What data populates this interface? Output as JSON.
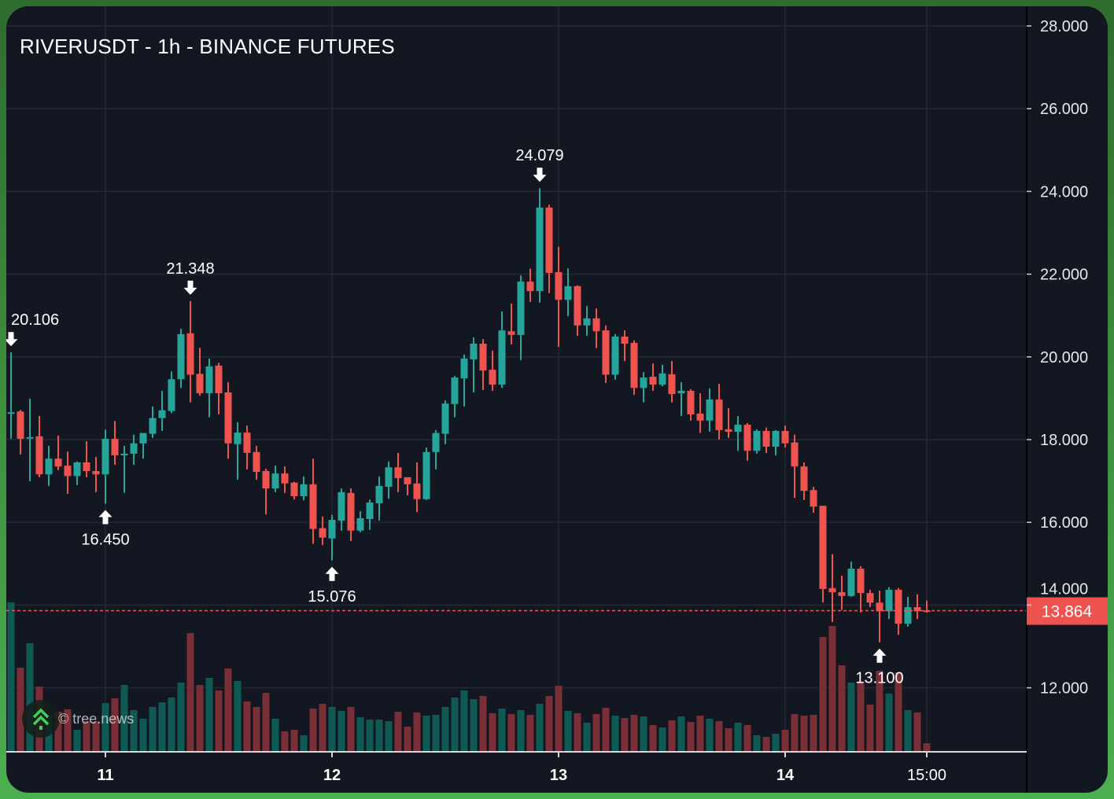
{
  "header": {
    "title": "RIVERUSDT - 1h - BINANCE FUTURES"
  },
  "watermark": {
    "text": "© tree.news",
    "icon": "tree-arrows-icon"
  },
  "colors": {
    "up": "#26a69a",
    "down": "#ef5350",
    "vol_up": "#0f5a54",
    "vol_down": "#7a2e35",
    "background": "#131722",
    "grid": "#242836",
    "frame": "#4caf50"
  },
  "chart_data": {
    "type": "candlestick",
    "title": "RIVERUSDT - 1h - BINANCE FUTURES",
    "ylim": [
      10.5,
      28.2
    ],
    "y_ticks": [
      "28.000",
      "26.000",
      "24.000",
      "22.000",
      "20.000",
      "18.000",
      "16.000",
      "14.000",
      "12.000"
    ],
    "y_tick_values": [
      28,
      26,
      24,
      22,
      20,
      18,
      16,
      14,
      12
    ],
    "x_ticks": [
      {
        "label": "11",
        "index": 10
      },
      {
        "label": "12",
        "index": 34
      },
      {
        "label": "13",
        "index": 58
      },
      {
        "label": "14",
        "index": 82
      },
      {
        "label": "15:00",
        "index": 97
      }
    ],
    "last_price": {
      "label": "13.864",
      "value": 13.864
    },
    "annotations": [
      {
        "type": "high",
        "index": 0,
        "label": "20.106",
        "value": 20.106
      },
      {
        "type": "high",
        "index": 19,
        "label": "21.348",
        "value": 21.348
      },
      {
        "type": "high",
        "index": 56,
        "label": "24.079",
        "value": 24.079
      },
      {
        "type": "low",
        "index": 10,
        "label": "16.450",
        "value": 16.45
      },
      {
        "type": "low",
        "index": 34,
        "label": "15.076",
        "value": 15.076
      },
      {
        "type": "low",
        "index": 92,
        "label": "13.100",
        "value": 13.1
      }
    ],
    "ohlc_columns": [
      "open",
      "high",
      "low",
      "close"
    ],
    "candles": [
      [
        18.64,
        20.11,
        18.02,
        18.66
      ],
      [
        18.68,
        18.72,
        17.64,
        18.02
      ],
      [
        18.05,
        18.99,
        16.99,
        18.06
      ],
      [
        18.08,
        18.57,
        17.09,
        17.16
      ],
      [
        17.16,
        17.85,
        16.88,
        17.54
      ],
      [
        17.54,
        18.1,
        17.26,
        17.35
      ],
      [
        17.37,
        17.71,
        16.69,
        17.12
      ],
      [
        17.12,
        17.47,
        16.9,
        17.45
      ],
      [
        17.45,
        17.96,
        17.09,
        17.24
      ],
      [
        17.24,
        17.58,
        16.73,
        17.16
      ],
      [
        17.16,
        18.24,
        16.45,
        18.02
      ],
      [
        18.02,
        18.45,
        17.39,
        17.62
      ],
      [
        17.62,
        17.85,
        16.71,
        17.66
      ],
      [
        17.66,
        18.12,
        17.39,
        17.91
      ],
      [
        17.91,
        18.16,
        17.54,
        18.16
      ],
      [
        18.14,
        18.8,
        18.04,
        18.52
      ],
      [
        18.52,
        19.18,
        18.21,
        18.71
      ],
      [
        18.69,
        19.65,
        18.64,
        19.46
      ],
      [
        19.46,
        20.68,
        19.25,
        20.55
      ],
      [
        20.57,
        21.35,
        18.9,
        19.57
      ],
      [
        19.59,
        20.22,
        19.06,
        19.12
      ],
      [
        19.12,
        19.96,
        18.54,
        19.77
      ],
      [
        19.79,
        19.86,
        18.61,
        19.12
      ],
      [
        19.14,
        19.39,
        17.54,
        17.91
      ],
      [
        17.89,
        18.42,
        17.03,
        18.17
      ],
      [
        18.17,
        18.34,
        17.28,
        17.68
      ],
      [
        17.7,
        17.85,
        17.03,
        17.22
      ],
      [
        17.24,
        17.3,
        16.19,
        16.82
      ],
      [
        16.82,
        17.37,
        16.73,
        17.18
      ],
      [
        17.18,
        17.35,
        16.71,
        16.94
      ],
      [
        16.96,
        16.98,
        16.55,
        16.63
      ],
      [
        16.63,
        17.11,
        16.53,
        16.92
      ],
      [
        16.92,
        17.54,
        15.48,
        15.84
      ],
      [
        15.86,
        16.14,
        15.45,
        15.63
      ],
      [
        15.61,
        16.18,
        15.08,
        16.06
      ],
      [
        16.04,
        16.82,
        15.8,
        16.73
      ],
      [
        16.71,
        16.82,
        15.55,
        15.8
      ],
      [
        15.8,
        16.27,
        15.76,
        16.1
      ],
      [
        16.08,
        16.55,
        15.82,
        16.48
      ],
      [
        16.46,
        17.11,
        16.04,
        16.88
      ],
      [
        16.86,
        17.47,
        16.57,
        17.33
      ],
      [
        17.33,
        17.68,
        16.73,
        17.07
      ],
      [
        17.09,
        17.09,
        16.65,
        16.92
      ],
      [
        16.94,
        17.45,
        16.25,
        16.56
      ],
      [
        16.56,
        17.81,
        16.54,
        17.7
      ],
      [
        17.7,
        18.23,
        17.28,
        18.16
      ],
      [
        18.14,
        18.95,
        17.89,
        18.87
      ],
      [
        18.86,
        19.54,
        18.54,
        19.5
      ],
      [
        19.48,
        20.06,
        18.8,
        19.96
      ],
      [
        19.94,
        20.47,
        19.14,
        20.32
      ],
      [
        20.32,
        20.43,
        19.2,
        19.67
      ],
      [
        19.69,
        20.15,
        19.18,
        19.33
      ],
      [
        19.33,
        21.1,
        19.25,
        20.64
      ],
      [
        20.62,
        21.29,
        20.3,
        20.53
      ],
      [
        20.53,
        21.97,
        19.92,
        21.82
      ],
      [
        21.82,
        22.13,
        21.33,
        21.59
      ],
      [
        21.59,
        24.08,
        21.31,
        23.61
      ],
      [
        23.61,
        23.68,
        21.54,
        22.03
      ],
      [
        22.05,
        22.66,
        20.24,
        21.38
      ],
      [
        21.38,
        22.14,
        20.98,
        21.71
      ],
      [
        21.71,
        21.73,
        20.51,
        20.76
      ],
      [
        20.76,
        21.23,
        20.51,
        20.93
      ],
      [
        20.93,
        21.17,
        20.21,
        20.62
      ],
      [
        20.64,
        20.76,
        19.37,
        19.57
      ],
      [
        19.57,
        20.55,
        19.45,
        20.49
      ],
      [
        20.49,
        20.64,
        19.9,
        20.32
      ],
      [
        20.34,
        20.4,
        19.08,
        19.25
      ],
      [
        19.25,
        19.63,
        18.9,
        19.5
      ],
      [
        19.52,
        19.84,
        19.18,
        19.33
      ],
      [
        19.33,
        19.81,
        19.29,
        19.6
      ],
      [
        19.58,
        19.9,
        18.9,
        19.1
      ],
      [
        19.12,
        19.39,
        18.57,
        19.18
      ],
      [
        19.18,
        19.22,
        18.46,
        18.61
      ],
      [
        18.63,
        19.12,
        18.16,
        18.46
      ],
      [
        18.46,
        19.24,
        18.19,
        18.97
      ],
      [
        18.97,
        19.35,
        18.0,
        18.23
      ],
      [
        18.25,
        18.76,
        18.04,
        18.19
      ],
      [
        18.19,
        18.57,
        17.73,
        18.36
      ],
      [
        18.36,
        18.4,
        17.49,
        17.73
      ],
      [
        17.73,
        18.25,
        17.66,
        18.21
      ],
      [
        18.21,
        18.29,
        17.68,
        17.83
      ],
      [
        17.83,
        18.23,
        17.62,
        18.21
      ],
      [
        18.21,
        18.34,
        17.81,
        17.91
      ],
      [
        17.93,
        18.12,
        16.59,
        17.35
      ],
      [
        17.35,
        17.45,
        16.54,
        16.76
      ],
      [
        16.78,
        16.86,
        16.23,
        16.38
      ],
      [
        16.4,
        16.4,
        14.06,
        14.39
      ],
      [
        14.41,
        15.23,
        13.59,
        14.31
      ],
      [
        14.31,
        14.71,
        13.88,
        14.22
      ],
      [
        14.22,
        15.05,
        14.2,
        14.88
      ],
      [
        14.88,
        14.94,
        13.82,
        14.29
      ],
      [
        14.29,
        14.37,
        13.95,
        14.06
      ],
      [
        14.06,
        14.35,
        13.1,
        13.85
      ],
      [
        13.85,
        14.43,
        13.66,
        14.37
      ],
      [
        14.37,
        14.41,
        13.28,
        13.55
      ],
      [
        13.55,
        14.2,
        13.48,
        13.95
      ],
      [
        13.95,
        14.26,
        13.66,
        13.85
      ],
      [
        13.87,
        14.11,
        13.82,
        13.864
      ]
    ],
    "volume_relative": [
      189,
      106,
      137,
      82,
      45,
      50,
      53,
      27,
      38,
      38,
      61,
      67,
      84,
      52,
      41,
      56,
      62,
      68,
      87,
      150,
      84,
      93,
      77,
      105,
      89,
      63,
      56,
      74,
      41,
      25,
      27,
      20,
      54,
      60,
      56,
      51,
      56,
      43,
      40,
      40,
      38,
      50,
      31,
      49,
      45,
      46,
      56,
      68,
      77,
      66,
      70,
      48,
      54,
      47,
      52,
      46,
      60,
      70,
      83,
      51,
      48,
      36,
      47,
      55,
      45,
      42,
      46,
      44,
      33,
      30,
      39,
      44,
      37,
      45,
      41,
      38,
      29,
      36,
      33,
      20,
      18,
      22,
      27,
      47,
      45,
      46,
      145,
      159,
      109,
      87,
      89,
      59,
      102,
      73,
      100,
      52,
      49,
      10
    ]
  }
}
